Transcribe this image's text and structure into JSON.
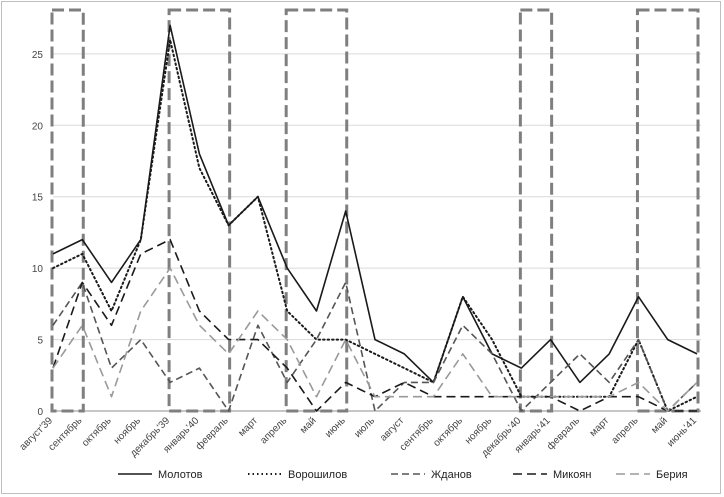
{
  "chart_data": {
    "type": "line",
    "title": "",
    "xlabel": "",
    "ylabel": "",
    "ylim": [
      0,
      28
    ],
    "yticks": [
      0,
      5,
      10,
      15,
      20,
      25
    ],
    "grid": "horizontal",
    "legend_position": "bottom",
    "categories": [
      "август'39",
      "сентябрь",
      "октябрь",
      "ноябрь",
      "декабрь'39",
      "январь'40",
      "февраль",
      "март",
      "апрель",
      "май",
      "июнь",
      "июль",
      "август",
      "сентябрь",
      "октябрь",
      "ноябрь",
      "декабрь'40",
      "январь'41",
      "февраль",
      "март",
      "апрель",
      "май",
      "июнь'41"
    ],
    "highlight_ranges": [
      [
        0,
        1
      ],
      [
        4,
        6
      ],
      [
        8,
        10
      ],
      [
        16,
        17
      ],
      [
        20,
        22
      ]
    ],
    "series": [
      {
        "name": "Молотов",
        "style": "solid",
        "color": "#1a1a1a",
        "values": [
          11,
          12,
          9,
          12,
          27,
          18,
          13,
          15,
          10,
          7,
          14,
          5,
          4,
          2,
          8,
          4,
          3,
          5,
          2,
          4,
          8,
          5,
          4
        ]
      },
      {
        "name": "Ворошилов",
        "style": "dotted",
        "color": "#1a1a1a",
        "values": [
          10,
          11,
          7,
          12,
          26,
          17,
          13,
          15,
          7,
          5,
          5,
          4,
          3,
          2,
          8,
          5,
          1,
          1,
          1,
          1,
          5,
          0,
          1
        ]
      },
      {
        "name": "Жданов",
        "style": "dashed",
        "color": "#555555",
        "values": [
          6,
          9,
          3,
          5,
          2,
          3,
          0,
          6,
          2,
          5,
          9,
          0,
          2,
          2,
          6,
          4,
          0,
          2,
          4,
          2,
          5,
          0,
          2
        ]
      },
      {
        "name": "Микоян",
        "style": "longdash",
        "color": "#1a1a1a",
        "values": [
          3,
          9,
          6,
          11,
          12,
          7,
          5,
          5,
          3,
          0,
          2,
          1,
          2,
          1,
          1,
          1,
          1,
          1,
          0,
          1,
          1,
          0,
          0
        ]
      },
      {
        "name": "Берия",
        "style": "longdash",
        "color": "#9a9a9a",
        "values": [
          3,
          6,
          1,
          7,
          10,
          6,
          4,
          7,
          5,
          1,
          5,
          1,
          1,
          1,
          4,
          1,
          1,
          1,
          1,
          1,
          2,
          0,
          2
        ]
      }
    ]
  }
}
